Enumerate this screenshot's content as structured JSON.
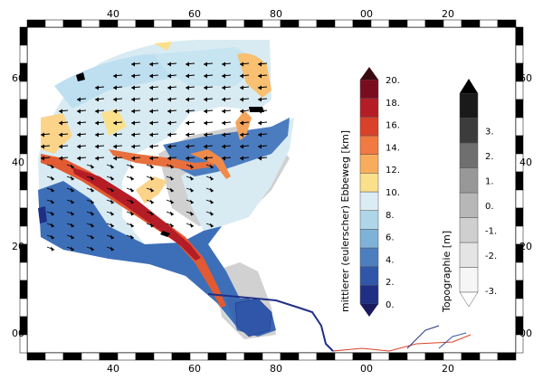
{
  "axes": {
    "x_ticks": [
      "40",
      "60",
      "80",
      "00",
      "20"
    ],
    "y_ticks": [
      "60",
      "40",
      "20",
      "00"
    ]
  },
  "colorbar_ebbeweg": {
    "label": "mittlerer (eulerscher) Ebbeweg [km]",
    "ticks": [
      "0.",
      "2.",
      "4.",
      "6.",
      "8.",
      "10.",
      "12.",
      "14.",
      "16.",
      "18.",
      "20."
    ],
    "colors": [
      "#1f2f86",
      "#2f56a8",
      "#4d7fc0",
      "#7fb2d8",
      "#aed6e8",
      "#dcecf4",
      "#fbe08c",
      "#f8ad5c",
      "#f07a42",
      "#d9412a",
      "#b51d26",
      "#7a0c1f"
    ],
    "extend_low_color": "#1a1a5e",
    "extend_high_color": "#3a0a10"
  },
  "colorbar_topographie": {
    "label": "Topographie [m]",
    "ticks": [
      "-3.",
      "-2.",
      "-1.",
      "0.",
      "1.",
      "2.",
      "3."
    ],
    "colors": [
      "#f6f6f6",
      "#e4e4e4",
      "#cfcfcf",
      "#b7b7b7",
      "#989898",
      "#6f6f6f",
      "#3c3c3c",
      "#1a1a1a"
    ]
  }
}
